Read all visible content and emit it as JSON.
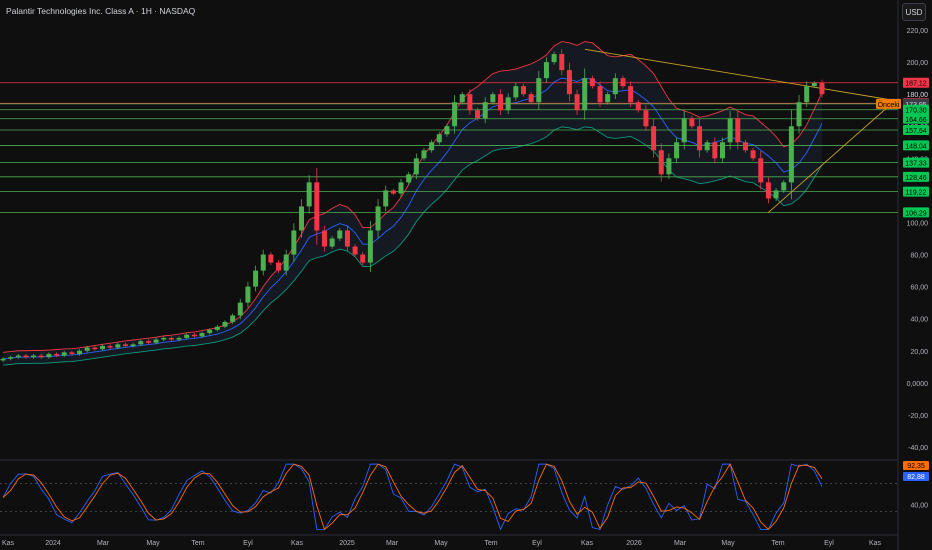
{
  "header": {
    "title": "Palantir Technologies Inc. Class A · 1H · NASDAQ",
    "currency": "USD"
  },
  "colors": {
    "up": "#22ab94",
    "up_candle": "#4caf50",
    "down": "#f23645",
    "sma": "#2962ff",
    "bb_upper": "#f23645",
    "bb_lower": "#089981",
    "trend": "#c9a227",
    "hline_green": "#4caf50",
    "hline_red": "#f23645",
    "rsi": "#2962ff",
    "rsi_signal": "#ff6d00"
  },
  "chart_data": {
    "type": "candlestick",
    "ylim": [
      -45,
      225
    ],
    "y_ticks": [
      "220,00",
      "200,00",
      "180,00",
      "160,00",
      "140,00",
      "120,00",
      "100,00",
      "80,00",
      "60,00",
      "40,00",
      "20,00",
      "0,0000",
      "-20,00",
      "-40,00"
    ],
    "x_tick_labels": [
      "Kas",
      "2024",
      "Mar",
      "May",
      "Tem",
      "Eyl",
      "Kas",
      "2025",
      "Mar",
      "May",
      "Tem",
      "Eyl",
      "Kas",
      "2026",
      "Mar",
      "May",
      "Tem",
      "Eyl",
      "Kas"
    ],
    "level_labels": [
      {
        "text": "187,12",
        "price": 187.12,
        "style": "red"
      },
      {
        "text": "180,00",
        "price": 180.0,
        "style": "axis"
      },
      {
        "text": "174,33",
        "price": 174.33,
        "style": "red"
      },
      {
        "text": "173,95",
        "price": 173.95,
        "style": "green"
      },
      {
        "text": "170,30",
        "price": 170.3,
        "style": "green"
      },
      {
        "text": "164,66",
        "price": 164.66,
        "style": "green"
      },
      {
        "text": "157,64",
        "price": 157.64,
        "style": "green"
      },
      {
        "text": "148,04",
        "price": 148.04,
        "style": "green"
      },
      {
        "text": "137,33",
        "price": 137.33,
        "style": "green"
      },
      {
        "text": "128,46",
        "price": 128.46,
        "style": "green"
      },
      {
        "text": "119,22",
        "price": 119.22,
        "style": "green"
      },
      {
        "text": "106,29",
        "price": 106.29,
        "style": "green"
      }
    ],
    "onceki_label": "Önceki",
    "candles_close_path": [
      15,
      16,
      17,
      16,
      17,
      16,
      18,
      17,
      19,
      18,
      20,
      22,
      21,
      23,
      22,
      24,
      23,
      24,
      26,
      25,
      27,
      28,
      27,
      28,
      30,
      29,
      31,
      33,
      35,
      38,
      42,
      50,
      60,
      70,
      80,
      75,
      70,
      80,
      95,
      110,
      125,
      95,
      85,
      90,
      95,
      85,
      80,
      75,
      95,
      110,
      120,
      118,
      125,
      130,
      140,
      145,
      150,
      155,
      160,
      175,
      180,
      170,
      165,
      175,
      180,
      170,
      178,
      185,
      180,
      175,
      190,
      200,
      205,
      195,
      180,
      170,
      190,
      185,
      175,
      180,
      190,
      185,
      175,
      170,
      160,
      145,
      130,
      140,
      150,
      165,
      160,
      145,
      150,
      140,
      150,
      165,
      150,
      145,
      140,
      125,
      115,
      120,
      125,
      160,
      175,
      185,
      187,
      180
    ],
    "rsi_ylabel_shown": "40,00",
    "rsi_value_labels": [
      "92,35",
      "82,88"
    ]
  }
}
